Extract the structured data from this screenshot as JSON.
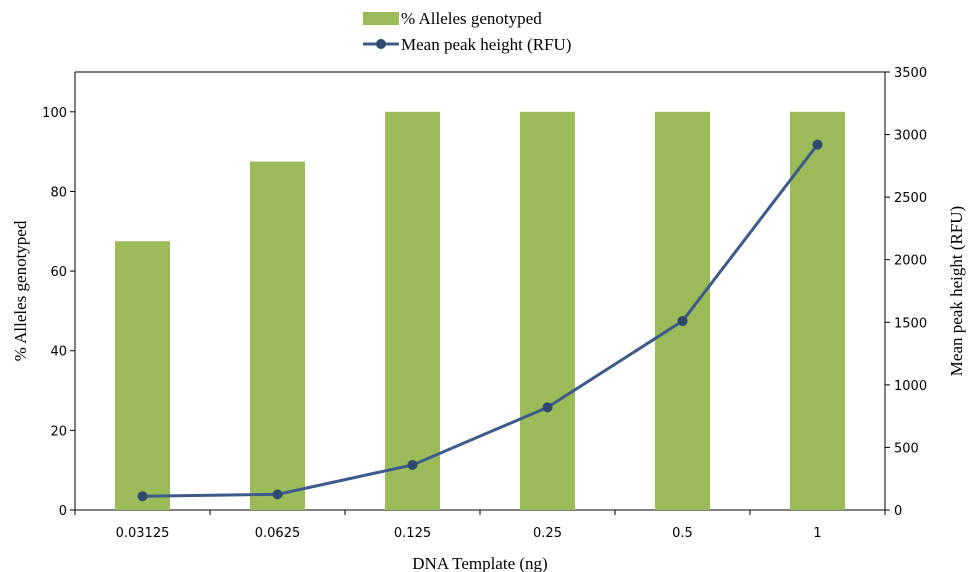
{
  "chart_data": {
    "type": "bar",
    "categories": [
      "0.03125",
      "0.0625",
      "0.125",
      "0.25",
      "0.5",
      "1"
    ],
    "series": [
      {
        "name": "% Alleles genotyped",
        "type": "bar",
        "axis": "left",
        "color": "#9bbb59",
        "values": [
          67.5,
          87.5,
          100,
          100,
          100,
          100
        ]
      },
      {
        "name": "Mean peak height (RFU)",
        "type": "line",
        "axis": "right",
        "color": "#3d5a8a",
        "values": [
          110,
          125,
          360,
          820,
          1510,
          2920
        ]
      }
    ],
    "xlabel": "DNA Template (ng)",
    "ylabel": "% Alleles genotyped",
    "y2label": "Mean peak height (RFU)",
    "ylim": [
      0,
      110
    ],
    "y2lim": [
      0,
      3500
    ],
    "yticks": [
      "0",
      "20",
      "40",
      "60",
      "80",
      "100"
    ],
    "y2ticks": [
      "0",
      "500",
      "1000",
      "1500",
      "2000",
      "2500",
      "3000",
      "3500"
    ],
    "grid": false,
    "legend_position": "top-center"
  }
}
